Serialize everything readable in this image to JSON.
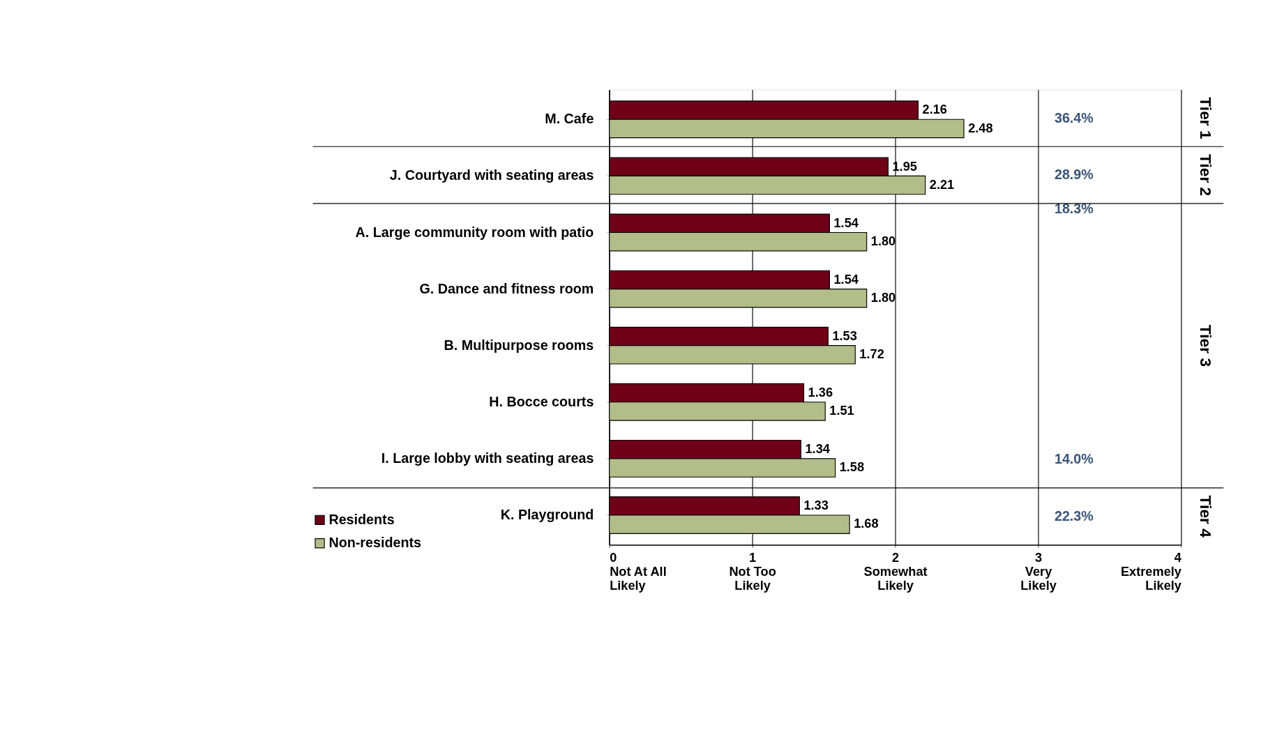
{
  "chart_data": {
    "type": "bar",
    "orientation": "horizontal",
    "categories": [
      "M. Cafe",
      "J. Courtyard with seating areas",
      "A. Large community room with patio",
      "G. Dance and fitness room",
      "B. Multipurpose rooms",
      "H. Bocce courts",
      "I. Large lobby with seating areas",
      "K. Playground"
    ],
    "series": [
      {
        "name": "Residents",
        "color": "#6e0018",
        "values": [
          2.16,
          1.95,
          1.54,
          1.54,
          1.53,
          1.36,
          1.34,
          1.33
        ],
        "value_labels": [
          "2.16",
          "1.95",
          "1.54",
          "1.54",
          "1.53",
          "1.36",
          "1.34",
          "1.33"
        ]
      },
      {
        "name": "Non-residents",
        "color": "#b3bd8a",
        "values": [
          2.48,
          2.21,
          1.8,
          1.8,
          1.72,
          1.51,
          1.58,
          1.68
        ],
        "value_labels": [
          "2.48",
          "2.21",
          "1.80",
          "1.80",
          "1.72",
          "1.51",
          "1.58",
          "1.68"
        ]
      }
    ],
    "xlim": [
      0,
      4
    ],
    "xticks": [
      {
        "value": 0,
        "label": "0\nNot At All\nLikely"
      },
      {
        "value": 1,
        "label": "1\nNot Too\nLikely"
      },
      {
        "value": 2,
        "label": "2\nSomewhat\nLikely"
      },
      {
        "value": 3,
        "label": "3\nVery\nLikely"
      },
      {
        "value": 4,
        "label": "4\nExtremely\nLikely"
      }
    ],
    "grid": "x",
    "legend": "bottom left",
    "annotations": [
      "Tier 1",
      "Tier 2",
      "Tier 3",
      "Tier 4",
      "36.4%",
      "28.9%",
      "18.3%",
      "14.0%",
      "22.3%"
    ]
  }
}
